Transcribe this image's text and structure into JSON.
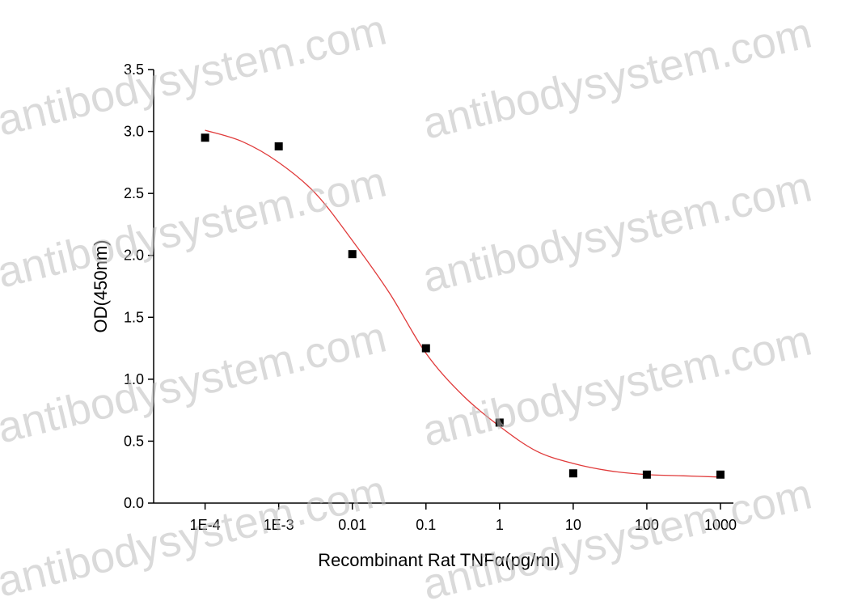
{
  "chart_data": {
    "type": "scatter",
    "xlabel": "Recombinant Rat TNFα(pg/ml)",
    "ylabel": "OD(450nm)",
    "watermark": "antibodysystem.com",
    "xscale": "log",
    "xlim": [
      2e-05,
      1500
    ],
    "ylim": [
      0,
      3.5
    ],
    "xticks": [
      {
        "value": 0.0001,
        "label": "1E-4"
      },
      {
        "value": 0.001,
        "label": "1E-3"
      },
      0.01,
      0.1,
      1,
      10,
      100,
      1000
    ],
    "yticks": [
      {
        "value": 0,
        "label": "0.0"
      },
      0.5,
      {
        "value": 1,
        "label": "1.0"
      },
      1.5,
      {
        "value": 2,
        "label": "2.0"
      },
      2.5,
      {
        "value": 3,
        "label": "3.0"
      },
      3.5
    ],
    "series": [
      {
        "type": "scatter",
        "color": "#000000",
        "x": [
          0.0001,
          0.001,
          0.01,
          0.1,
          1,
          10,
          100,
          1000
        ],
        "values": [
          2.95,
          2.88,
          2.01,
          1.25,
          0.65,
          0.24,
          0.23,
          0.23
        ]
      },
      {
        "type": "line",
        "color": "#e03a3a",
        "x": [
          0.0001,
          0.000316,
          0.001,
          0.00316,
          0.01,
          0.0316,
          0.1,
          0.316,
          1,
          3.16,
          10,
          31.6,
          100,
          316,
          1000
        ],
        "values": [
          3.01,
          2.92,
          2.75,
          2.5,
          2.12,
          1.7,
          1.21,
          0.87,
          0.62,
          0.42,
          0.32,
          0.26,
          0.23,
          0.22,
          0.21
        ]
      }
    ]
  }
}
